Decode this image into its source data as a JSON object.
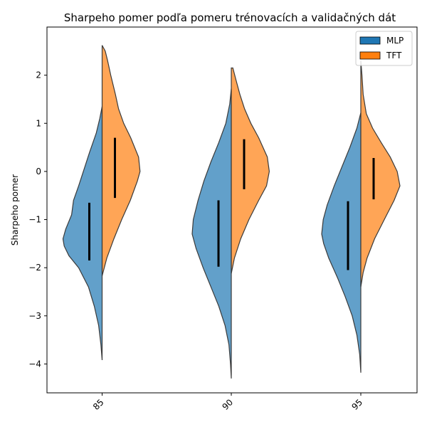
{
  "chart_data": {
    "type": "violin",
    "title": "Sharpeho pomer podľa pomeru trénovacích a validačných dát",
    "xlabel": "",
    "ylabel": "Sharpeho pomer",
    "categories": [
      "85",
      "90",
      "95"
    ],
    "ylim": [
      -4.6,
      3.0
    ],
    "yticks": [
      -4,
      -3,
      -2,
      -1,
      0,
      1,
      2
    ],
    "ytick_labels": [
      "−4",
      "−3",
      "−2",
      "−1",
      "0",
      "1",
      "2"
    ],
    "grid": false,
    "legend_position": "top-right",
    "split": true,
    "series": [
      {
        "name": "MLP",
        "color": "#1f77b4",
        "side": "left",
        "groups": [
          {
            "category": "85",
            "min": -3.92,
            "max": 1.35,
            "q1": -1.85,
            "q3": -0.65,
            "density": [
              [
                -3.92,
                0.0
              ],
              [
                -3.6,
                0.03
              ],
              [
                -3.2,
                0.09
              ],
              [
                -2.8,
                0.2
              ],
              [
                -2.4,
                0.35
              ],
              [
                -2.0,
                0.6
              ],
              [
                -1.75,
                0.85
              ],
              [
                -1.55,
                0.97
              ],
              [
                -1.4,
                1.0
              ],
              [
                -1.2,
                0.93
              ],
              [
                -0.9,
                0.78
              ],
              [
                -0.6,
                0.73
              ],
              [
                -0.3,
                0.6
              ],
              [
                0.0,
                0.48
              ],
              [
                0.4,
                0.32
              ],
              [
                0.8,
                0.15
              ],
              [
                1.1,
                0.06
              ],
              [
                1.35,
                0.0
              ]
            ]
          },
          {
            "category": "90",
            "min": -4.3,
            "max": 1.72,
            "q1": -1.98,
            "q3": -0.6,
            "density": [
              [
                -4.3,
                0.0
              ],
              [
                -4.0,
                0.02
              ],
              [
                -3.6,
                0.06
              ],
              [
                -3.2,
                0.16
              ],
              [
                -2.8,
                0.32
              ],
              [
                -2.4,
                0.52
              ],
              [
                -2.0,
                0.72
              ],
              [
                -1.6,
                0.9
              ],
              [
                -1.3,
                1.0
              ],
              [
                -1.0,
                0.97
              ],
              [
                -0.6,
                0.85
              ],
              [
                -0.2,
                0.7
              ],
              [
                0.2,
                0.52
              ],
              [
                0.6,
                0.32
              ],
              [
                1.0,
                0.14
              ],
              [
                1.4,
                0.04
              ],
              [
                1.72,
                0.0
              ]
            ]
          },
          {
            "category": "95",
            "min": -4.18,
            "max": 1.22,
            "q1": -2.05,
            "q3": -0.62,
            "density": [
              [
                -4.18,
                0.0
              ],
              [
                -3.8,
                0.03
              ],
              [
                -3.4,
                0.1
              ],
              [
                -3.0,
                0.22
              ],
              [
                -2.6,
                0.4
              ],
              [
                -2.2,
                0.6
              ],
              [
                -1.8,
                0.82
              ],
              [
                -1.5,
                0.95
              ],
              [
                -1.3,
                1.0
              ],
              [
                -1.0,
                0.96
              ],
              [
                -0.7,
                0.86
              ],
              [
                -0.3,
                0.68
              ],
              [
                0.1,
                0.48
              ],
              [
                0.5,
                0.28
              ],
              [
                0.9,
                0.1
              ],
              [
                1.22,
                0.0
              ]
            ]
          }
        ]
      },
      {
        "name": "TFT",
        "color": "#ff7f0e",
        "side": "right",
        "groups": [
          {
            "category": "85",
            "min": -2.17,
            "max": 2.62,
            "q1": -0.55,
            "q3": 0.7,
            "density": [
              [
                -2.17,
                0.0
              ],
              [
                -1.8,
                0.12
              ],
              [
                -1.4,
                0.3
              ],
              [
                -1.0,
                0.5
              ],
              [
                -0.6,
                0.72
              ],
              [
                -0.2,
                0.9
              ],
              [
                0.0,
                0.97
              ],
              [
                0.3,
                0.93
              ],
              [
                0.7,
                0.73
              ],
              [
                1.0,
                0.55
              ],
              [
                1.3,
                0.42
              ],
              [
                1.6,
                0.34
              ],
              [
                2.0,
                0.22
              ],
              [
                2.3,
                0.14
              ],
              [
                2.5,
                0.08
              ],
              [
                2.62,
                0.0
              ]
            ]
          },
          {
            "category": "90",
            "min": -2.12,
            "max": 2.15,
            "q1": -0.37,
            "q3": 0.67,
            "density": [
              [
                -2.12,
                0.0
              ],
              [
                -1.8,
                0.08
              ],
              [
                -1.4,
                0.24
              ],
              [
                -1.0,
                0.45
              ],
              [
                -0.6,
                0.7
              ],
              [
                -0.3,
                0.9
              ],
              [
                0.0,
                0.97
              ],
              [
                0.3,
                0.92
              ],
              [
                0.7,
                0.7
              ],
              [
                1.0,
                0.5
              ],
              [
                1.3,
                0.34
              ],
              [
                1.6,
                0.22
              ],
              [
                1.9,
                0.12
              ],
              [
                2.15,
                0.04
              ]
            ]
          },
          {
            "category": "95",
            "min": -2.4,
            "max": 2.3,
            "q1": -0.58,
            "q3": 0.28,
            "density": [
              [
                -2.4,
                0.0
              ],
              [
                -2.1,
                0.06
              ],
              [
                -1.8,
                0.16
              ],
              [
                -1.4,
                0.35
              ],
              [
                -1.0,
                0.6
              ],
              [
                -0.6,
                0.85
              ],
              [
                -0.3,
                1.0
              ],
              [
                0.0,
                0.93
              ],
              [
                0.3,
                0.75
              ],
              [
                0.6,
                0.52
              ],
              [
                0.9,
                0.3
              ],
              [
                1.2,
                0.14
              ],
              [
                1.6,
                0.06
              ],
              [
                2.0,
                0.03
              ],
              [
                2.3,
                0.0
              ]
            ]
          }
        ]
      }
    ]
  },
  "legend": {
    "items": [
      {
        "label": "MLP",
        "color": "#1f77b4"
      },
      {
        "label": "TFT",
        "color": "#ff7f0e"
      }
    ]
  }
}
